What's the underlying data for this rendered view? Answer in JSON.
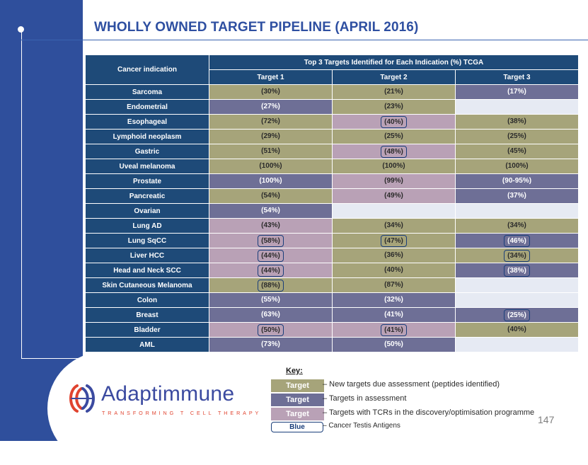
{
  "title": "WHOLLY OWNED TARGET PIPELINE (APRIL 2016)",
  "table": {
    "indication_header": "Cancer indication",
    "group_header": "Top 3 Targets Identified for Each Indication (%) TCGA",
    "target_headers": [
      "Target 1",
      "Target 2",
      "Target 3"
    ],
    "rows": [
      {
        "indication": "Sarcoma",
        "cells": [
          {
            "value": "(30%)",
            "status": "new",
            "cta": false
          },
          {
            "value": "(21%)",
            "status": "new",
            "cta": false
          },
          {
            "value": "(17%)",
            "status": "assess",
            "cta": false
          }
        ]
      },
      {
        "indication": "Endometrial",
        "cells": [
          {
            "value": "(27%)",
            "status": "assess",
            "cta": false
          },
          {
            "value": "(23%)",
            "status": "new",
            "cta": false
          },
          {
            "value": "",
            "status": "empty",
            "cta": false
          }
        ]
      },
      {
        "indication": "Esophageal",
        "cells": [
          {
            "value": "(72%)",
            "status": "new",
            "cta": false
          },
          {
            "value": "(40%)",
            "status": "tcr",
            "cta": true
          },
          {
            "value": "(38%)",
            "status": "new",
            "cta": false
          }
        ]
      },
      {
        "indication": "Lymphoid neoplasm",
        "cells": [
          {
            "value": "(29%)",
            "status": "new",
            "cta": false
          },
          {
            "value": "(25%)",
            "status": "new",
            "cta": false
          },
          {
            "value": "(25%)",
            "status": "new",
            "cta": false
          }
        ]
      },
      {
        "indication": "Gastric",
        "cells": [
          {
            "value": "(51%)",
            "status": "new",
            "cta": false
          },
          {
            "value": "(48%)",
            "status": "tcr",
            "cta": true
          },
          {
            "value": "(45%)",
            "status": "new",
            "cta": false
          }
        ]
      },
      {
        "indication": "Uveal melanoma",
        "cells": [
          {
            "value": "(100%)",
            "status": "new",
            "cta": false
          },
          {
            "value": "(100%)",
            "status": "new",
            "cta": false
          },
          {
            "value": "(100%)",
            "status": "new",
            "cta": false
          }
        ]
      },
      {
        "indication": "Prostate",
        "cells": [
          {
            "value": "(100%)",
            "status": "assess",
            "cta": false
          },
          {
            "value": "(99%)",
            "status": "tcr",
            "cta": false
          },
          {
            "value": "(90-95%)",
            "status": "assess",
            "cta": false
          }
        ]
      },
      {
        "indication": "Pancreatic",
        "cells": [
          {
            "value": "(54%)",
            "status": "new",
            "cta": false
          },
          {
            "value": "(49%)",
            "status": "tcr",
            "cta": false
          },
          {
            "value": "(37%)",
            "status": "assess",
            "cta": false
          }
        ]
      },
      {
        "indication": "Ovarian",
        "cells": [
          {
            "value": "(54%)",
            "status": "assess",
            "cta": false
          },
          {
            "value": "",
            "status": "empty",
            "cta": false
          },
          {
            "value": "",
            "status": "empty",
            "cta": false
          }
        ]
      },
      {
        "indication": "Lung AD",
        "cells": [
          {
            "value": "(43%)",
            "status": "tcr",
            "cta": false
          },
          {
            "value": "(34%)",
            "status": "new",
            "cta": false
          },
          {
            "value": "(34%)",
            "status": "new",
            "cta": false
          }
        ]
      },
      {
        "indication": "Lung SqCC",
        "cells": [
          {
            "value": "(58%)",
            "status": "tcr",
            "cta": true
          },
          {
            "value": "(47%)",
            "status": "new",
            "cta": true
          },
          {
            "value": "(46%)",
            "status": "assess",
            "cta": true
          }
        ]
      },
      {
        "indication": "Liver HCC",
        "cells": [
          {
            "value": "(44%)",
            "status": "tcr",
            "cta": true
          },
          {
            "value": "(36%)",
            "status": "new",
            "cta": false
          },
          {
            "value": "(34%)",
            "status": "new",
            "cta": true
          }
        ]
      },
      {
        "indication": "Head and Neck SCC",
        "cells": [
          {
            "value": "(44%)",
            "status": "tcr",
            "cta": true
          },
          {
            "value": "(40%)",
            "status": "new",
            "cta": false
          },
          {
            "value": "(38%)",
            "status": "assess",
            "cta": true
          }
        ]
      },
      {
        "indication": "Skin Cutaneous Melanoma",
        "cells": [
          {
            "value": "(88%)",
            "status": "new",
            "cta": true
          },
          {
            "value": "(87%)",
            "status": "new",
            "cta": false
          },
          {
            "value": "",
            "status": "empty",
            "cta": false
          }
        ]
      },
      {
        "indication": "Colon",
        "cells": [
          {
            "value": "(55%)",
            "status": "assess",
            "cta": false
          },
          {
            "value": "(32%)",
            "status": "assess",
            "cta": false
          },
          {
            "value": "",
            "status": "empty",
            "cta": false
          }
        ]
      },
      {
        "indication": "Breast",
        "cells": [
          {
            "value": "(63%)",
            "status": "assess",
            "cta": false
          },
          {
            "value": "(41%)",
            "status": "assess",
            "cta": false
          },
          {
            "value": "(25%)",
            "status": "assess",
            "cta": true
          }
        ]
      },
      {
        "indication": "Bladder",
        "cells": [
          {
            "value": "(50%)",
            "status": "tcr",
            "cta": true
          },
          {
            "value": "(41%)",
            "status": "tcr",
            "cta": true
          },
          {
            "value": "(40%)",
            "status": "new",
            "cta": false
          }
        ]
      },
      {
        "indication": "AML",
        "cells": [
          {
            "value": "(73%)",
            "status": "assess",
            "cta": false
          },
          {
            "value": "(50%)",
            "status": "assess",
            "cta": false
          },
          {
            "value": "",
            "status": "empty",
            "cta": false
          }
        ]
      }
    ]
  },
  "key": {
    "title": "Key:",
    "items": [
      {
        "swatch": "Target",
        "text": "– New targets due assessment (peptides identified)",
        "color": "#a6a47a"
      },
      {
        "swatch": "Target",
        "text": "– Targets in assessment",
        "color": "#6e6f96"
      },
      {
        "swatch": "Target",
        "text": "– Targets with TCRs in the discovery/optimisation programme",
        "color": "#b9a1b6"
      },
      {
        "swatch": "Blue",
        "text": "– Cancer Testis Antigens",
        "color": "#1a3e7a"
      }
    ]
  },
  "logo": {
    "name": "Adaptimmune",
    "tagline": "TRANSFORMING T CELL THERAPY",
    "icon": "adaptimmune-logo-icon"
  },
  "page_number": "147",
  "colors": {
    "sidebar": "#2f4f9c",
    "header": "#1e4a78",
    "new_target": "#a6a47a",
    "in_assessment": "#6e6f96",
    "tcr_programme": "#b9a1b6",
    "empty": "#e6eaf3",
    "cta_border": "#1a3e7a"
  }
}
